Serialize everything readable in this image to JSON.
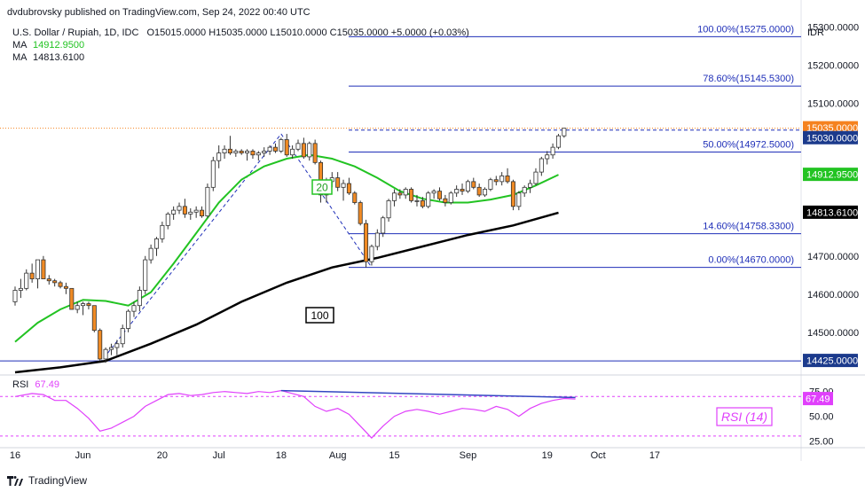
{
  "header": {
    "publisher": "dvdubrovsky published on TradingView.com, Sep 24, 2022 00:40 UTC",
    "symbol": "U.S. Dollar / Rupiah, 1D, IDC",
    "ohlc": "O15015.0000  H15035.0000  L15010.0000  C15035.0000  +5.0000 (+0.03%)",
    "ma1_label": "MA",
    "ma1_value": "14912.9500",
    "ma2_label": "MA",
    "ma2_value": "14813.6100",
    "rsi_label": "RSI",
    "rsi_value": "67.49",
    "currency": "IDR"
  },
  "footer": {
    "brand": "TradingView"
  },
  "colors": {
    "up": "#ffffff",
    "down": "#f08a24",
    "ma20": "#22c322",
    "ma100": "#000000",
    "fib": "#1f2fb8",
    "rsi": "#e040fb",
    "price_badge": "#f5821f",
    "label_badge": "#1b3a8c"
  },
  "chart_data": {
    "type": "candlestick",
    "y_range": [
      14395,
      15320
    ],
    "y_ticks": [
      "15300.0000",
      "15200.0000",
      "15100.0000",
      "14700.0000",
      "14600.0000",
      "14500.0000"
    ],
    "x_ticks": [
      {
        "label": "16",
        "i": 0
      },
      {
        "label": "Jun",
        "i": 12
      },
      {
        "label": "20",
        "i": 26
      },
      {
        "label": "Jul",
        "i": 36
      },
      {
        "label": "18",
        "i": 47
      },
      {
        "label": "Aug",
        "i": 57
      },
      {
        "label": "15",
        "i": 67
      },
      {
        "label": "Sep",
        "i": 80
      },
      {
        "label": "19",
        "i": 94
      },
      {
        "label": "Oct",
        "i": 103
      },
      {
        "label": "17",
        "i": 113
      }
    ],
    "candles": [
      [
        14580,
        14620,
        14570,
        14610
      ],
      [
        14610,
        14640,
        14590,
        14615
      ],
      [
        14615,
        14665,
        14610,
        14655
      ],
      [
        14655,
        14680,
        14630,
        14640
      ],
      [
        14640,
        14690,
        14615,
        14690
      ],
      [
        14690,
        14700,
        14640,
        14640
      ],
      [
        14640,
        14650,
        14625,
        14635
      ],
      [
        14635,
        14640,
        14620,
        14630
      ],
      [
        14630,
        14635,
        14615,
        14620
      ],
      [
        14620,
        14630,
        14600,
        14615
      ],
      [
        14615,
        14615,
        14560,
        14560
      ],
      [
        14560,
        14580,
        14550,
        14570
      ],
      [
        14570,
        14580,
        14545,
        14575
      ],
      [
        14575,
        14580,
        14560,
        14570
      ],
      [
        14570,
        14570,
        14500,
        14505
      ],
      [
        14505,
        14510,
        14425,
        14430
      ],
      [
        14430,
        14460,
        14420,
        14455
      ],
      [
        14455,
        14470,
        14440,
        14460
      ],
      [
        14460,
        14480,
        14440,
        14470
      ],
      [
        14470,
        14520,
        14460,
        14510
      ],
      [
        14510,
        14560,
        14500,
        14555
      ],
      [
        14555,
        14580,
        14540,
        14570
      ],
      [
        14570,
        14620,
        14555,
        14610
      ],
      [
        14610,
        14700,
        14600,
        14690
      ],
      [
        14690,
        14730,
        14680,
        14720
      ],
      [
        14720,
        14750,
        14700,
        14745
      ],
      [
        14745,
        14790,
        14735,
        14780
      ],
      [
        14780,
        14815,
        14770,
        14810
      ],
      [
        14810,
        14830,
        14795,
        14820
      ],
      [
        14820,
        14840,
        14810,
        14830
      ],
      [
        14830,
        14850,
        14800,
        14810
      ],
      [
        14810,
        14825,
        14795,
        14815
      ],
      [
        14815,
        14830,
        14800,
        14820
      ],
      [
        14820,
        14830,
        14800,
        14805
      ],
      [
        14805,
        14890,
        14800,
        14880
      ],
      [
        14880,
        14960,
        14870,
        14950
      ],
      [
        14950,
        14990,
        14930,
        14970
      ],
      [
        14970,
        14990,
        14955,
        14980
      ],
      [
        14980,
        15015,
        14965,
        14970
      ],
      [
        14970,
        14980,
        14960,
        14975
      ],
      [
        14975,
        14980,
        14965,
        14970
      ],
      [
        14970,
        14980,
        14950,
        14975
      ],
      [
        14975,
        14980,
        14955,
        14965
      ],
      [
        14965,
        14975,
        14950,
        14970
      ],
      [
        14970,
        14985,
        14960,
        14975
      ],
      [
        14975,
        14990,
        14965,
        14985
      ],
      [
        14985,
        14995,
        14970,
        14975
      ],
      [
        14975,
        15010,
        14970,
        15005
      ],
      [
        15005,
        15020,
        14960,
        14965
      ],
      [
        14965,
        14990,
        14955,
        14980
      ],
      [
        14980,
        15005,
        14975,
        14995
      ],
      [
        14995,
        15010,
        14955,
        14960
      ],
      [
        14960,
        15000,
        14950,
        14995
      ],
      [
        14995,
        15005,
        14940,
        14945
      ],
      [
        14945,
        14950,
        14840,
        14860
      ],
      [
        14860,
        14905,
        14840,
        14895
      ],
      [
        14895,
        14920,
        14880,
        14905
      ],
      [
        14905,
        14920,
        14870,
        14880
      ],
      [
        14880,
        14900,
        14845,
        14890
      ],
      [
        14890,
        14905,
        14860,
        14865
      ],
      [
        14865,
        14870,
        14835,
        14840
      ],
      [
        14840,
        14845,
        14780,
        14785
      ],
      [
        14785,
        14795,
        14670,
        14685
      ],
      [
        14685,
        14730,
        14675,
        14725
      ],
      [
        14725,
        14770,
        14715,
        14760
      ],
      [
        14760,
        14805,
        14750,
        14800
      ],
      [
        14800,
        14850,
        14790,
        14845
      ],
      [
        14845,
        14875,
        14830,
        14865
      ],
      [
        14865,
        14875,
        14850,
        14860
      ],
      [
        14860,
        14880,
        14850,
        14875
      ],
      [
        14875,
        14880,
        14840,
        14845
      ],
      [
        14845,
        14860,
        14830,
        14845
      ],
      [
        14845,
        14855,
        14825,
        14830
      ],
      [
        14830,
        14870,
        14825,
        14865
      ],
      [
        14865,
        14875,
        14850,
        14870
      ],
      [
        14870,
        14880,
        14845,
        14850
      ],
      [
        14850,
        14860,
        14830,
        14840
      ],
      [
        14840,
        14870,
        14835,
        14865
      ],
      [
        14865,
        14885,
        14855,
        14875
      ],
      [
        14875,
        14890,
        14860,
        14870
      ],
      [
        14870,
        14900,
        14865,
        14895
      ],
      [
        14895,
        14905,
        14875,
        14880
      ],
      [
        14880,
        14890,
        14855,
        14860
      ],
      [
        14860,
        14880,
        14855,
        14875
      ],
      [
        14875,
        14905,
        14870,
        14900
      ],
      [
        14900,
        14910,
        14885,
        14895
      ],
      [
        14895,
        14920,
        14885,
        14910
      ],
      [
        14910,
        14930,
        14890,
        14895
      ],
      [
        14895,
        14900,
        14820,
        14830
      ],
      [
        14830,
        14870,
        14820,
        14865
      ],
      [
        14865,
        14885,
        14855,
        14880
      ],
      [
        14880,
        14900,
        14865,
        14890
      ],
      [
        14890,
        14930,
        14885,
        14920
      ],
      [
        14920,
        14960,
        14910,
        14955
      ],
      [
        14955,
        14975,
        14940,
        14965
      ],
      [
        14965,
        14995,
        14955,
        14985
      ],
      [
        14985,
        15020,
        14980,
        15015
      ],
      [
        15015,
        15035,
        15010,
        15035
      ]
    ],
    "ma20": [
      [
        0,
        14475
      ],
      [
        4,
        14525
      ],
      [
        8,
        14560
      ],
      [
        12,
        14585
      ],
      [
        16,
        14582
      ],
      [
        20,
        14570
      ],
      [
        24,
        14605
      ],
      [
        28,
        14680
      ],
      [
        32,
        14760
      ],
      [
        36,
        14840
      ],
      [
        40,
        14900
      ],
      [
        44,
        14935
      ],
      [
        48,
        14955
      ],
      [
        52,
        14965
      ],
      [
        56,
        14955
      ],
      [
        60,
        14935
      ],
      [
        64,
        14905
      ],
      [
        68,
        14870
      ],
      [
        72,
        14850
      ],
      [
        76,
        14840
      ],
      [
        80,
        14840
      ],
      [
        84,
        14848
      ],
      [
        88,
        14860
      ],
      [
        92,
        14885
      ],
      [
        96,
        14912.95
      ]
    ],
    "ma100": [
      [
        0,
        14395
      ],
      [
        8,
        14408
      ],
      [
        16,
        14425
      ],
      [
        24,
        14470
      ],
      [
        32,
        14520
      ],
      [
        40,
        14580
      ],
      [
        48,
        14630
      ],
      [
        56,
        14670
      ],
      [
        64,
        14695
      ],
      [
        72,
        14725
      ],
      [
        80,
        14755
      ],
      [
        88,
        14780
      ],
      [
        96,
        14813.61
      ]
    ],
    "ma20_tag": "20",
    "ma100_tag": "100",
    "fib_levels": [
      {
        "label": "100.00%(15275.0000)",
        "value": 15275
      },
      {
        "label": "78.60%(15145.5300)",
        "value": 15145.53
      },
      {
        "label": "50.00%(14972.5000)",
        "value": 14972.5
      },
      {
        "label": "14.60%(14758.3300)",
        "value": 14758.33
      },
      {
        "label": "0.00%(14670.0000)",
        "value": 14670
      }
    ],
    "support_line": {
      "value": 14425,
      "label": "14425.0000"
    },
    "price_labels": [
      {
        "text": "15035.0000",
        "value": 15035,
        "kind": "price"
      },
      {
        "text": "15030.0000",
        "value": 15030,
        "kind": "level"
      },
      {
        "text": "14912.9500",
        "value": 14912.95,
        "kind": "ma20"
      },
      {
        "text": "14813.6100",
        "value": 14813.61,
        "kind": "ma100"
      }
    ],
    "dashed_swings": [
      [
        [
          15,
          14420
        ],
        [
          47,
          15020
        ]
      ],
      [
        [
          47,
          15020
        ],
        [
          63,
          14670
        ]
      ]
    ],
    "rsi": {
      "range": [
        20,
        90
      ],
      "ticks": [
        "75.00",
        "50.00",
        "25.00"
      ],
      "overbought": 70,
      "oversold": 30,
      "tag": "RSI (14)",
      "values": [
        [
          0,
          70
        ],
        [
          3,
          73
        ],
        [
          5,
          72
        ],
        [
          7,
          66
        ],
        [
          9,
          66
        ],
        [
          11,
          58
        ],
        [
          13,
          48
        ],
        [
          15,
          35
        ],
        [
          17,
          38
        ],
        [
          19,
          44
        ],
        [
          21,
          50
        ],
        [
          23,
          60
        ],
        [
          25,
          66
        ],
        [
          27,
          72
        ],
        [
          29,
          73
        ],
        [
          31,
          71
        ],
        [
          33,
          72
        ],
        [
          35,
          74
        ],
        [
          37,
          75
        ],
        [
          39,
          74
        ],
        [
          41,
          73
        ],
        [
          43,
          75
        ],
        [
          45,
          74
        ],
        [
          47,
          76
        ],
        [
          49,
          73
        ],
        [
          51,
          70
        ],
        [
          53,
          60
        ],
        [
          55,
          55
        ],
        [
          57,
          58
        ],
        [
          59,
          52
        ],
        [
          61,
          40
        ],
        [
          63,
          28
        ],
        [
          65,
          40
        ],
        [
          67,
          50
        ],
        [
          69,
          55
        ],
        [
          71,
          57
        ],
        [
          73,
          55
        ],
        [
          75,
          52
        ],
        [
          77,
          55
        ],
        [
          79,
          58
        ],
        [
          81,
          57
        ],
        [
          83,
          55
        ],
        [
          85,
          60
        ],
        [
          87,
          57
        ],
        [
          89,
          50
        ],
        [
          91,
          58
        ],
        [
          93,
          63
        ],
        [
          95,
          66
        ],
        [
          97,
          68
        ],
        [
          99,
          67.49
        ]
      ],
      "divergence": [
        [
          47,
          76
        ],
        [
          99,
          69
        ]
      ]
    }
  }
}
